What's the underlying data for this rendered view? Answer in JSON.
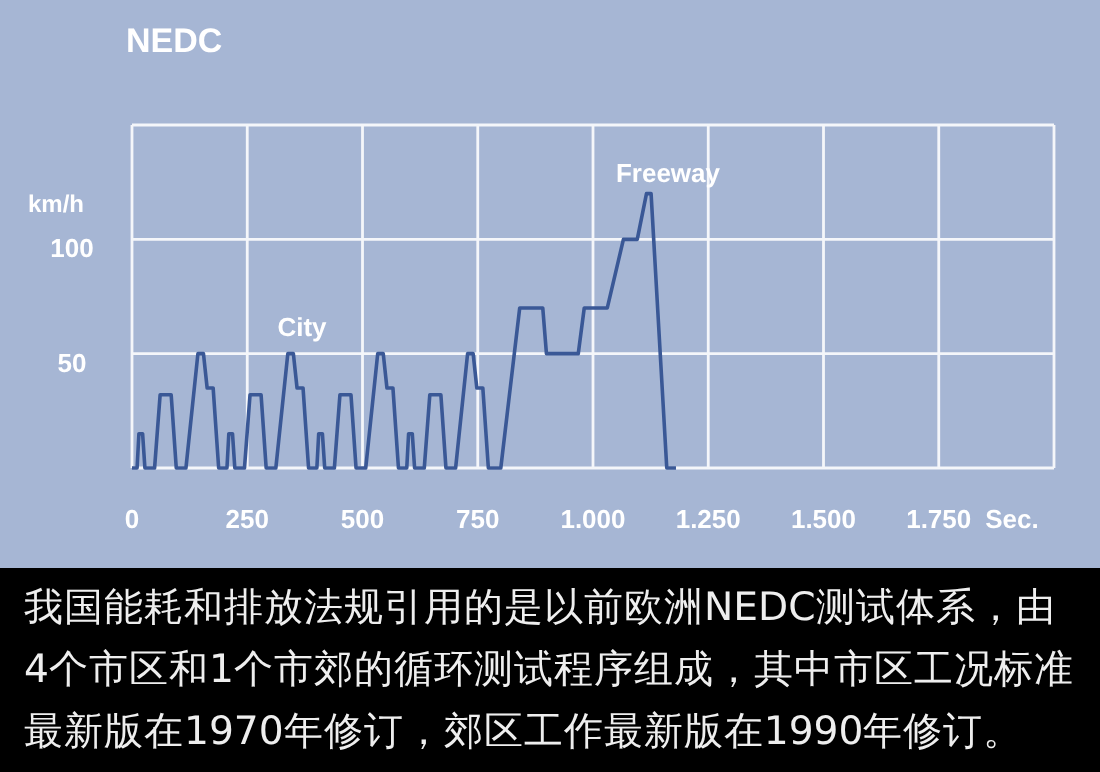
{
  "chart_data": {
    "type": "line",
    "title": "NEDC",
    "xlabel": "Sec.",
    "ylabel": "km/h",
    "x": [
      0,
      11,
      15,
      23,
      28,
      49,
      61,
      85,
      96,
      117,
      143,
      155,
      163,
      176,
      188,
      195,
      206,
      210,
      218,
      223,
      244,
      256,
      280,
      291,
      312,
      338,
      350,
      358,
      371,
      383,
      390,
      401,
      405,
      413,
      418,
      439,
      451,
      475,
      486,
      507,
      533,
      545,
      553,
      566,
      578,
      585,
      596,
      600,
      608,
      613,
      634,
      646,
      670,
      681,
      702,
      728,
      740,
      748,
      761,
      773,
      780,
      800,
      841,
      891,
      899,
      968,
      981,
      1031,
      1066,
      1096,
      1116,
      1126,
      1160,
      1180
    ],
    "series": [
      {
        "color": "#3a5896",
        "values": [
          0,
          0,
          15,
          15,
          0,
          0,
          32,
          32,
          0,
          0,
          50,
          50,
          35,
          35,
          0,
          0,
          0,
          15,
          15,
          0,
          0,
          32,
          32,
          0,
          0,
          50,
          50,
          35,
          35,
          0,
          0,
          0,
          15,
          15,
          0,
          0,
          32,
          32,
          0,
          0,
          50,
          50,
          35,
          35,
          0,
          0,
          0,
          15,
          15,
          0,
          0,
          32,
          32,
          0,
          0,
          50,
          50,
          35,
          35,
          0,
          0,
          0,
          70,
          70,
          50,
          50,
          70,
          70,
          100,
          100,
          120,
          120,
          0,
          0
        ]
      }
    ],
    "xlim": [
      0,
      2000
    ],
    "ylim": [
      0,
      150
    ],
    "xticks": [
      {
        "value": 0,
        "label": "0"
      },
      250,
      500,
      750,
      {
        "value": 1000,
        "label": "1.000"
      },
      {
        "value": 1250,
        "label": "1.250"
      },
      {
        "value": 1500,
        "label": "1.500"
      },
      {
        "value": 1750,
        "label": "1.750"
      },
      {
        "value": 2000,
        "label": null
      }
    ],
    "yticks": [
      {
        "value": 0,
        "label": null
      },
      50,
      100,
      {
        "value": 150,
        "label": null
      }
    ],
    "grid": true,
    "marker": "none",
    "line_style": "solid",
    "annotations": [
      "City",
      "Freeway",
      "我国能耗和排放法规引用的是以前欧洲NEDC测试体系，由4个市区和1个市郊的循环测试程序组成，其中市区工况标准最新版在1970年修订，郊区工作最新版在1990年修订。"
    ]
  }
}
